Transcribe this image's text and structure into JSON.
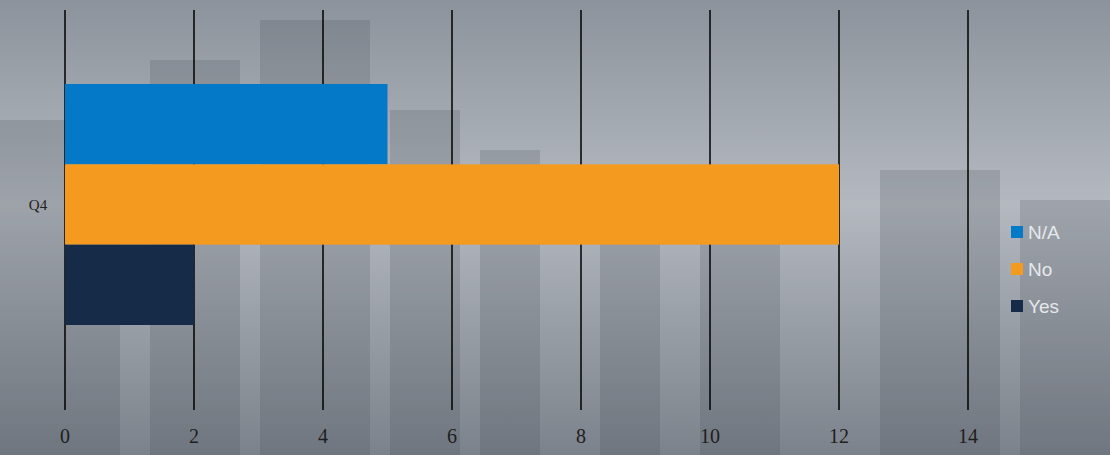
{
  "chart_data": {
    "type": "bar",
    "orientation": "horizontal",
    "categories": [
      "Q4"
    ],
    "series": [
      {
        "name": "N/A",
        "color": "#0479c8",
        "values": [
          5
        ]
      },
      {
        "name": "No",
        "color": "#f39a1f",
        "values": [
          12
        ]
      },
      {
        "name": "Yes",
        "color": "#152b47",
        "values": [
          2
        ]
      }
    ],
    "xlim": [
      0,
      14
    ],
    "xticks": [
      0,
      2,
      4,
      6,
      8,
      10,
      12,
      14
    ],
    "grid": true,
    "legend": "right"
  }
}
